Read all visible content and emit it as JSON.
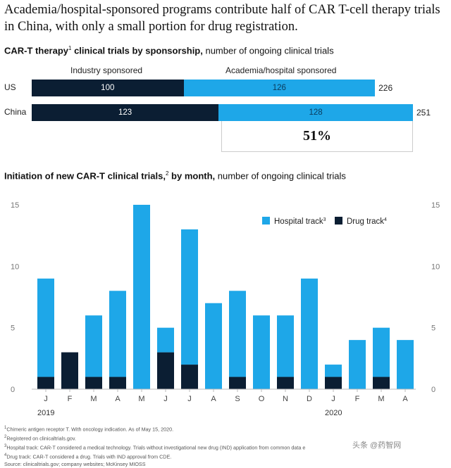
{
  "headline": "Academia/hospital-sponsored programs contribute half of CAR T-cell therapy trials in China, with only a small portion for drug registration.",
  "top_title": {
    "bold": "CAR-T therapy",
    "sup": "1",
    "bold2": " clinical trials by sponsorship,",
    "rest": " number of ongoing clinical trials"
  },
  "bottom_title": {
    "bold": "Initiation of new CAR-T clinical trials,",
    "sup": "2",
    "bold2": " by month,",
    "rest": " number of ongoing clinical trials"
  },
  "colors": {
    "dark": "#0b1e33",
    "light": "#1ea7e8",
    "axis": "#bbbbbb",
    "grid_text": "#777777"
  },
  "chart_data": [
    {
      "type": "bar",
      "orientation": "horizontal-stacked",
      "title": "CAR-T therapy clinical trials by sponsorship",
      "subtitle": "number of ongoing clinical trials",
      "series_names": [
        "Industry sponsored",
        "Academia/hospital sponsored"
      ],
      "categories": [
        "US",
        "China"
      ],
      "series": [
        {
          "name": "Industry sponsored",
          "values": [
            100,
            123
          ]
        },
        {
          "name": "Academia/hospital sponsored",
          "values": [
            126,
            128
          ]
        }
      ],
      "totals": [
        226,
        251
      ],
      "annotation": "51%"
    },
    {
      "type": "bar",
      "orientation": "vertical-stacked",
      "title": "Initiation of new CAR-T clinical trials, by month",
      "subtitle": "number of ongoing clinical trials",
      "categories": [
        "J",
        "F",
        "M",
        "A",
        "M",
        "J",
        "J",
        "A",
        "S",
        "O",
        "N",
        "D",
        "J",
        "F",
        "M",
        "A"
      ],
      "years": [
        {
          "label": "2019",
          "at_index": 0
        },
        {
          "label": "2020",
          "at_index": 12
        }
      ],
      "series": [
        {
          "name": "Hospital track",
          "values": [
            8,
            0,
            5,
            7,
            15,
            2,
            11,
            7,
            7,
            6,
            5,
            9,
            1,
            4,
            4,
            4
          ]
        },
        {
          "name": "Drug track",
          "values": [
            1,
            3,
            1,
            1,
            0,
            3,
            2,
            0,
            1,
            0,
            1,
            0,
            1,
            0,
            1,
            0
          ]
        }
      ],
      "legend": [
        {
          "label": "Hospital track",
          "sup": "3"
        },
        {
          "label": "Drug track",
          "sup": "4"
        }
      ],
      "legend_position": "top-right",
      "ylim": [
        0,
        15
      ],
      "yticks": [
        0,
        5,
        10,
        15
      ],
      "grid": false
    }
  ],
  "footnotes": [
    {
      "sup": "1",
      "text": "Chimeric antigen receptor T. With oncology indication. As of May 15, 2020."
    },
    {
      "sup": "2",
      "text": "Registered on clinicaltrials.gov."
    },
    {
      "sup": "3",
      "text": "Hospital track: CAR-T considered a medical technology. Trials without investigational new drug (IND) application from common data e"
    },
    {
      "sup": "4",
      "text": "Drug track: CAR-T considered a drug. Trials with IND approval from CDE."
    },
    {
      "sup": "",
      "text": "Source: clinicaltrials.gov; company websites; McKinsey MIOSS"
    }
  ],
  "watermark": "头条 @药智网"
}
